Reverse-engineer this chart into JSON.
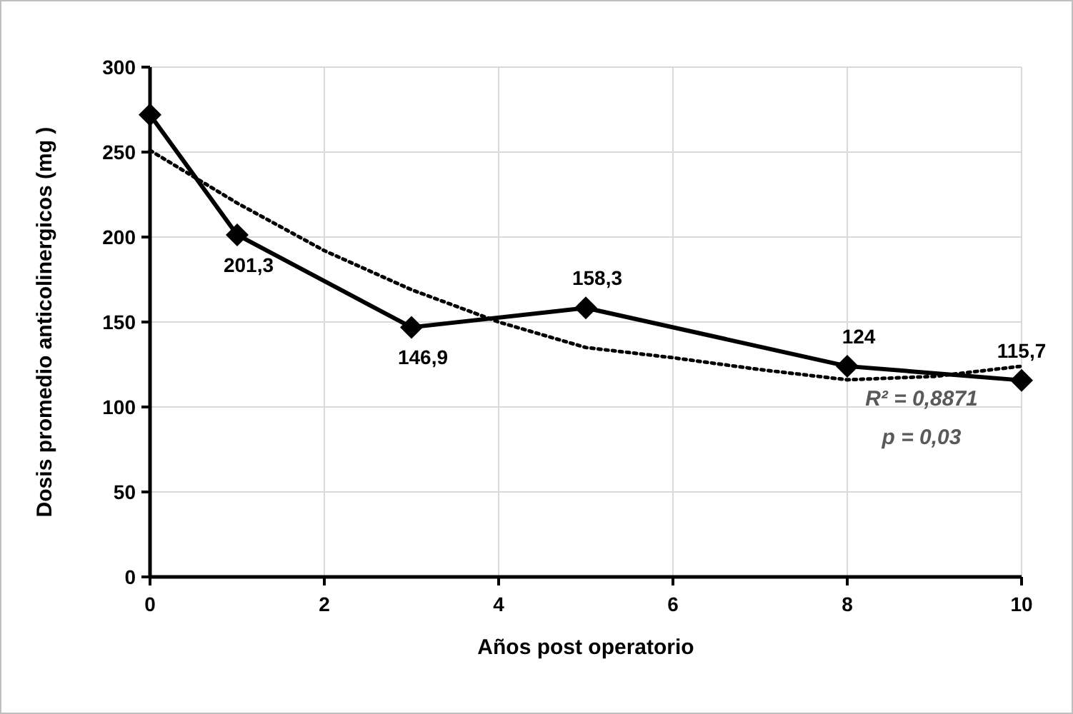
{
  "chart_data": {
    "type": "line",
    "xlabel": "Años post operatorio",
    "ylabel": "Dosis promedio anticolinergicos (mg )",
    "xlim": [
      0,
      10
    ],
    "xticks": [
      0,
      2,
      4,
      6,
      8,
      10
    ],
    "ylim": [
      0,
      300
    ],
    "yticks": [
      0,
      50,
      100,
      150,
      200,
      250,
      300
    ],
    "grid": true,
    "series": [
      {
        "type": "line",
        "color": "#000000",
        "marker": "diamond",
        "line_style": "solid",
        "x": [
          0,
          1,
          3,
          5,
          8,
          10
        ],
        "values": [
          272,
          201.3,
          146.9,
          158.3,
          124,
          115.7
        ],
        "value_labels": [
          null,
          "201,3",
          "146,9",
          "158,3",
          "124",
          "115,7"
        ]
      },
      {
        "type": "line",
        "color": "#000000",
        "marker": "none",
        "line_style": "dotted",
        "x": [
          0,
          1,
          2,
          3,
          4,
          5,
          6,
          7,
          8,
          9,
          10
        ],
        "values": [
          251,
          220,
          192,
          169,
          150,
          135,
          129,
          122,
          116,
          118,
          124
        ]
      }
    ],
    "annotations": [
      "R² = 0,8871",
      "p = 0,03"
    ]
  }
}
